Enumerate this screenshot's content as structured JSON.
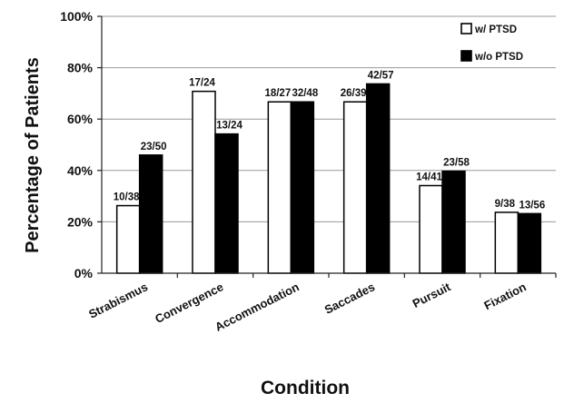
{
  "chart_data": {
    "type": "bar",
    "categories": [
      "Strabismus",
      "Convergence",
      "Accommodation",
      "Saccades",
      "Pursuit",
      "Fixation"
    ],
    "series": [
      {
        "name": "w/ PTSD",
        "color": "#ffffff",
        "values": [
          26.3,
          70.8,
          66.7,
          66.7,
          34.1,
          23.7
        ],
        "labels": [
          "10/38",
          "17/24",
          "18/27",
          "26/39",
          "14/41",
          "9/38"
        ]
      },
      {
        "name": "w/o PTSD",
        "color": "#000000",
        "values": [
          46.0,
          54.2,
          66.7,
          73.7,
          39.7,
          23.2
        ],
        "labels": [
          "23/50",
          "13/24",
          "32/48",
          "42/57",
          "23/58",
          "13/56"
        ]
      }
    ],
    "xlabel": "Condition",
    "ylabel": "Percentage of Patients",
    "ylim": [
      0,
      100
    ],
    "yticks": [
      "0%",
      "20%",
      "40%",
      "60%",
      "80%",
      "100%"
    ],
    "grid": true,
    "legend": "top-right"
  }
}
